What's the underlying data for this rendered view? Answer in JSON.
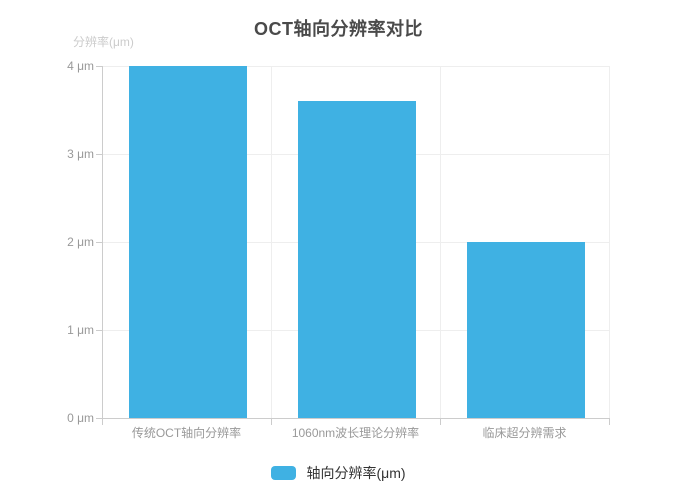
{
  "chart_data": {
    "type": "bar",
    "title": "OCT轴向分辨率对比",
    "ylabel": "分辨率(μm)",
    "xlabel": "",
    "categories": [
      "传统OCT轴向分辨率",
      "1060nm波长理论分辨率",
      "临床超分辨需求"
    ],
    "series": [
      {
        "name": "轴向分辨率(μm)",
        "values": [
          4,
          3.6,
          2
        ]
      }
    ],
    "ylim": [
      0,
      4
    ],
    "y_ticks": [
      {
        "v": 0,
        "label": "0 μm"
      },
      {
        "v": 1,
        "label": "1 μm"
      },
      {
        "v": 2,
        "label": "2 μm"
      },
      {
        "v": 3,
        "label": "3 μm"
      },
      {
        "v": 4,
        "label": "4 μm"
      }
    ],
    "grid": true,
    "legend": {
      "position": "bottom",
      "items": [
        "轴向分辨率(μm)"
      ]
    },
    "colors": {
      "bar": "#3fb1e3",
      "axis_line": "#cccccc",
      "grid_line": "#eeeeee",
      "tick_label": "#999999",
      "axis_name": "#cccccc",
      "title": "#4a4a4a",
      "legend_text": "#333333",
      "background": "#ffffff"
    }
  }
}
